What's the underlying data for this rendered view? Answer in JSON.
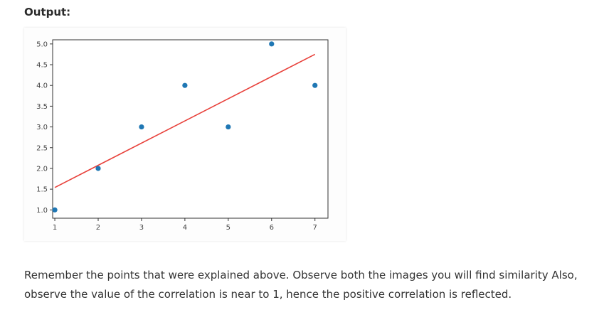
{
  "heading": "Output:",
  "chart_data": {
    "type": "scatter",
    "x": [
      1,
      2,
      3,
      4,
      5,
      6,
      7
    ],
    "y": [
      1.0,
      2.0,
      3.0,
      4.0,
      3.0,
      5.0,
      4.0
    ],
    "fit_line": {
      "x": [
        1,
        7
      ],
      "y": [
        1.54,
        4.75
      ],
      "color": "#e8413b"
    },
    "point_color": "#1f77b4",
    "xlim": [
      0.95,
      7.3
    ],
    "ylim": [
      0.8,
      5.1
    ],
    "xticks": [
      1,
      2,
      3,
      4,
      5,
      6,
      7
    ],
    "xtick_labels": [
      "1",
      "2",
      "3",
      "4",
      "5",
      "6",
      "7"
    ],
    "yticks": [
      1.0,
      1.5,
      2.0,
      2.5,
      3.0,
      3.5,
      4.0,
      4.5,
      5.0
    ],
    "ytick_labels": [
      "1.0",
      "1.5",
      "2.0",
      "2.5",
      "3.0",
      "3.5",
      "4.0",
      "4.5",
      "5.0"
    ],
    "title": "",
    "xlabel": "",
    "ylabel": "",
    "grid": false
  },
  "caption": "Remember the points that were explained above. Observe both the images you will find similarity Also, observe the value of the correlation is near to 1, hence the positive correlation is reflected."
}
